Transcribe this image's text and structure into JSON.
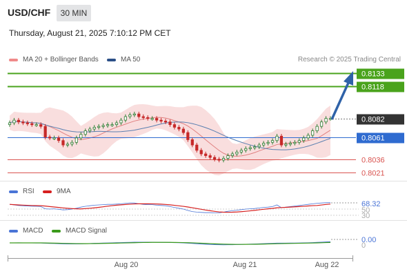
{
  "header": {
    "symbol": "USD/CHF",
    "timeframe": "30 MIN",
    "datetime": "Thursday, August 21, 2025 7:10:12 PM CET"
  },
  "legend": {
    "ma20": "MA 20 + Bollinger Bands",
    "ma50": "MA 50"
  },
  "credit": "Research © 2025 Trading Central",
  "colors": {
    "resistance": "#4aa31c",
    "support": "#d9534f",
    "pivot": "#2f6bd0",
    "bullish": "#2e7d32",
    "bearish": "#c62828",
    "bollinger": "#f7d3d3",
    "ma20": "#e08080",
    "ma50": "#5a7fb0",
    "arrow": "#2f62a8",
    "last": "#333333"
  },
  "chart_data": [
    {
      "type": "candlestick",
      "name": "price",
      "x_labels": [
        "Aug 20",
        "Aug 21",
        "Aug 22"
      ],
      "levels": [
        {
          "value": "0.8133",
          "role": "resistance"
        },
        {
          "value": "0.8118",
          "role": "resistance"
        },
        {
          "value": "0.8082",
          "role": "last"
        },
        {
          "value": "0.8061",
          "role": "pivot"
        },
        {
          "value": "0.8036",
          "role": "support"
        },
        {
          "value": "0.8021",
          "role": "support"
        }
      ],
      "close": [
        0.8077,
        0.808,
        0.8078,
        0.8077,
        0.8076,
        0.8075,
        0.8075,
        0.8073,
        0.8061,
        0.806,
        0.806,
        0.8057,
        0.8052,
        0.8053,
        0.8055,
        0.806,
        0.8064,
        0.8068,
        0.807,
        0.8072,
        0.8073,
        0.8074,
        0.8075,
        0.8075,
        0.8077,
        0.808,
        0.8084,
        0.8086,
        0.8087,
        0.8084,
        0.8083,
        0.8082,
        0.8082,
        0.808,
        0.8079,
        0.8078,
        0.8075,
        0.8072,
        0.807,
        0.8066,
        0.8058,
        0.8052,
        0.8046,
        0.8042,
        0.804,
        0.8038,
        0.8036,
        0.8035,
        0.8037,
        0.804,
        0.8042,
        0.8044,
        0.8046,
        0.8048,
        0.8049,
        0.805,
        0.8052,
        0.8054,
        0.8055,
        0.8057,
        0.8062,
        0.8052,
        0.8053,
        0.8054,
        0.8055,
        0.8057,
        0.806,
        0.8063,
        0.8068,
        0.8073,
        0.8078,
        0.8082,
        0.8082
      ]
    },
    {
      "type": "line",
      "name": "RSI",
      "series_labels": [
        "RSI",
        "9MA"
      ],
      "last_value": "68.32",
      "levels": [
        "50",
        "30"
      ],
      "values": [
        62,
        60,
        58,
        57,
        56,
        55,
        55,
        54,
        46,
        45,
        46,
        44,
        42,
        43,
        45,
        48,
        52,
        55,
        57,
        59,
        60,
        61,
        62,
        62,
        63,
        64,
        66,
        67,
        67,
        64,
        62,
        61,
        61,
        59,
        58,
        57,
        54,
        51,
        48,
        45,
        40,
        36,
        34,
        33,
        32,
        32,
        31,
        31,
        34,
        37,
        39,
        41,
        43,
        45,
        46,
        47,
        49,
        51,
        52,
        54,
        60,
        50,
        52,
        54,
        56,
        58,
        60,
        62,
        64,
        66,
        67,
        68,
        68.32
      ]
    },
    {
      "type": "line",
      "name": "MACD",
      "series_labels": [
        "MACD",
        "MACD Signal"
      ],
      "last_value": "0.00",
      "levels": [
        "0"
      ]
    }
  ]
}
